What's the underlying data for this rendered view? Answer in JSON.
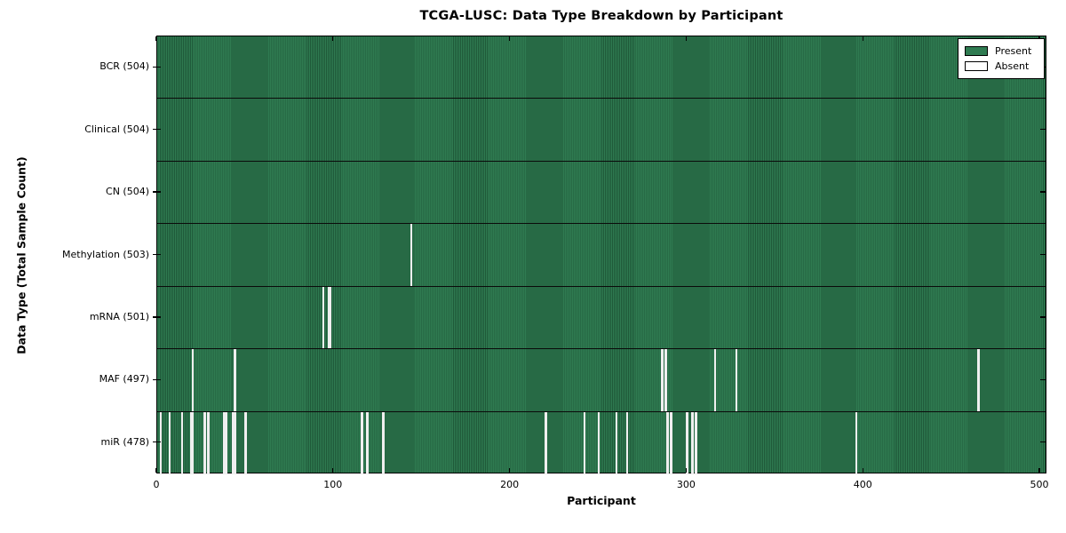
{
  "chart_data": {
    "type": "heatmap",
    "title": "TCGA-LUSC: Data Type Breakdown by Participant",
    "xlabel": "Participant",
    "ylabel": "Data Type (Total Sample Count)",
    "x_ticks": [
      0,
      100,
      200,
      300,
      400,
      500
    ],
    "x_range": [
      0,
      504
    ],
    "n_participants": 504,
    "grid": false,
    "legend_position": "upper right",
    "legend": [
      {
        "label": "Present",
        "color": "#2f7b51"
      },
      {
        "label": "Absent",
        "color": "#ffffff"
      }
    ],
    "colors": {
      "present": "#2f7b51",
      "present_stripe": "#1f5939",
      "absent": "#efefef",
      "edge": "#000000"
    },
    "rows": [
      {
        "label": "BCR",
        "total": 504,
        "display": "BCR (504)",
        "absent": []
      },
      {
        "label": "Clinical",
        "total": 504,
        "display": "Clinical (504)",
        "absent": []
      },
      {
        "label": "CN",
        "total": 504,
        "display": "CN (504)",
        "absent": []
      },
      {
        "label": "Methylation",
        "total": 503,
        "display": "Methylation (503)",
        "absent": [
          144
        ]
      },
      {
        "label": "mRNA",
        "total": 501,
        "display": "mRNA (501)",
        "absent": [
          94,
          97,
          98
        ]
      },
      {
        "label": "MAF",
        "total": 497,
        "display": "MAF (497)",
        "absent": [
          20,
          44,
          286,
          288,
          316,
          328,
          465
        ]
      },
      {
        "label": "miR",
        "total": 478,
        "display": "miR (478)",
        "absent": [
          2,
          7,
          14,
          19,
          20,
          27,
          29,
          38,
          39,
          43,
          44,
          50,
          116,
          119,
          128,
          220,
          242,
          250,
          260,
          266,
          289,
          291,
          300,
          303,
          305,
          396
        ]
      }
    ]
  }
}
